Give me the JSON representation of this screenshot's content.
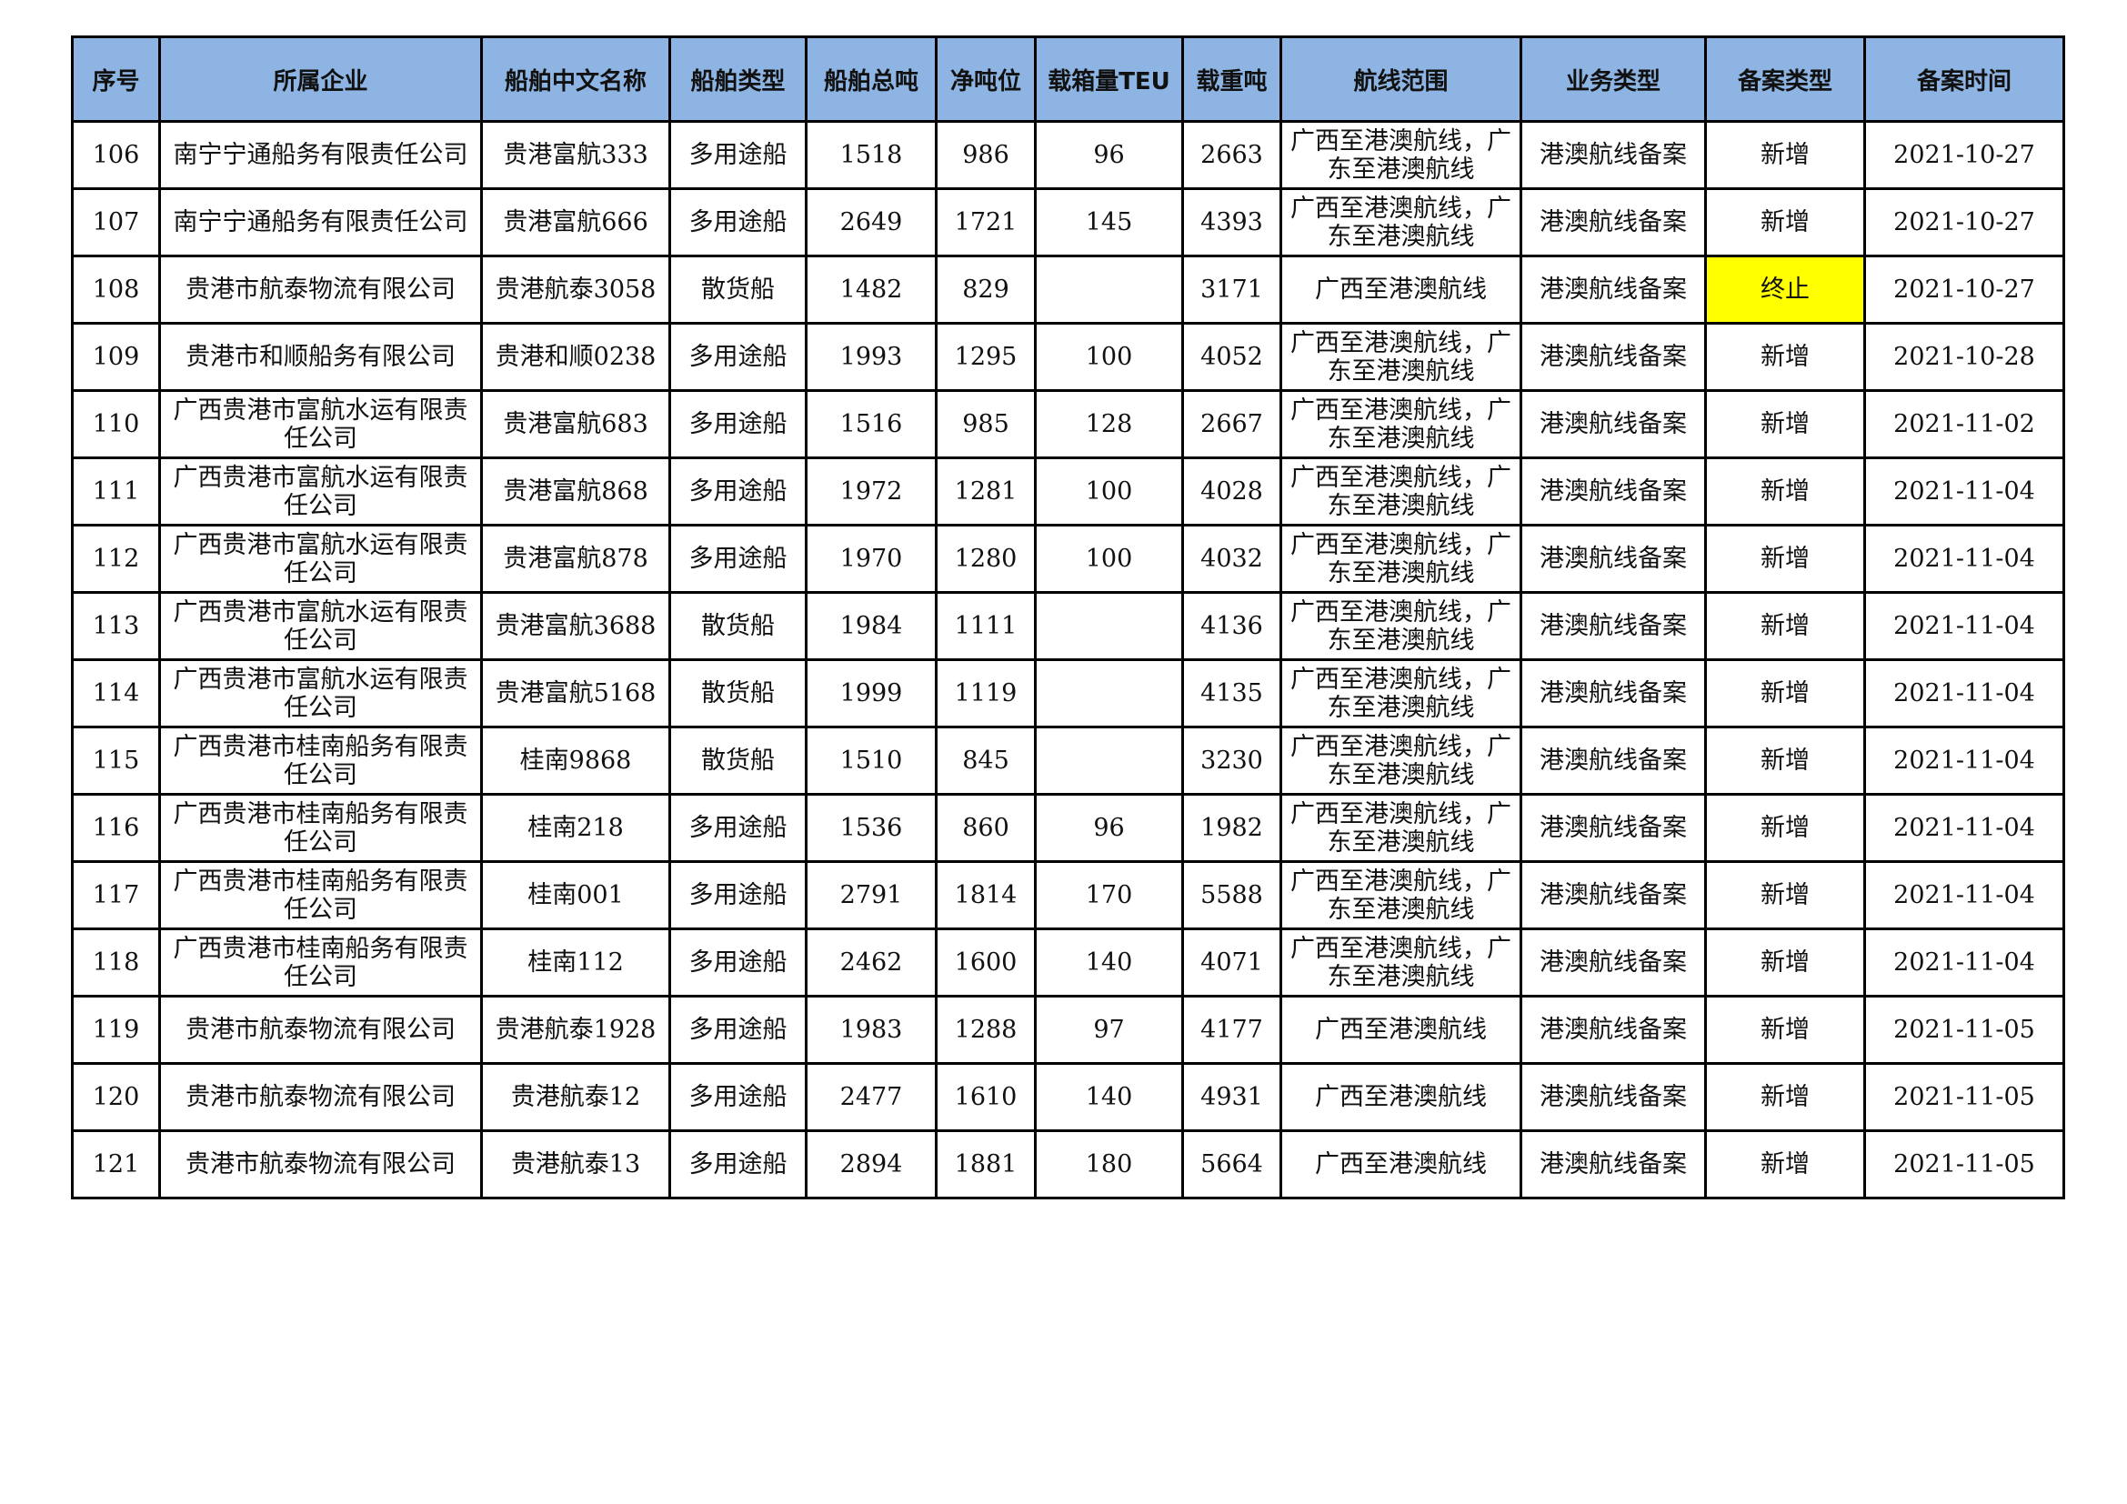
{
  "columns": [
    "序号",
    "所属企业",
    "船舶中文名称",
    "船舶类型",
    "船舶总吨",
    "净吨位",
    "载箱量TEU",
    "载重吨",
    "航线范围",
    "业务类型",
    "备案类型",
    "备案时间"
  ],
  "highlight_color": "#FFFF00",
  "header_color": "#8DB4E2",
  "rows": [
    [
      "106",
      "南宁宁通船务有限责任公司",
      "贵港富航333",
      "多用途船",
      "1518",
      "986",
      "96",
      "2663",
      "广西至港澳航线，广东至港澳航线",
      "港澳航线备案",
      "新增",
      "2021-10-27"
    ],
    [
      "107",
      "南宁宁通船务有限责任公司",
      "贵港富航666",
      "多用途船",
      "2649",
      "1721",
      "145",
      "4393",
      "广西至港澳航线，广东至港澳航线",
      "港澳航线备案",
      "新增",
      "2021-10-27"
    ],
    [
      "108",
      "贵港市航泰物流有限公司",
      "贵港航泰3058",
      "散货船",
      "1482",
      "829",
      "",
      "3171",
      "广西至港澳航线",
      "港澳航线备案",
      "终止",
      "2021-10-27"
    ],
    [
      "109",
      "贵港市和顺船务有限公司",
      "贵港和顺0238",
      "多用途船",
      "1993",
      "1295",
      "100",
      "4052",
      "广西至港澳航线，广东至港澳航线",
      "港澳航线备案",
      "新增",
      "2021-10-28"
    ],
    [
      "110",
      "广西贵港市富航水运有限责任公司",
      "贵港富航683",
      "多用途船",
      "1516",
      "985",
      "128",
      "2667",
      "广西至港澳航线，广东至港澳航线",
      "港澳航线备案",
      "新增",
      "2021-11-02"
    ],
    [
      "111",
      "广西贵港市富航水运有限责任公司",
      "贵港富航868",
      "多用途船",
      "1972",
      "1281",
      "100",
      "4028",
      "广西至港澳航线，广东至港澳航线",
      "港澳航线备案",
      "新增",
      "2021-11-04"
    ],
    [
      "112",
      "广西贵港市富航水运有限责任公司",
      "贵港富航878",
      "多用途船",
      "1970",
      "1280",
      "100",
      "4032",
      "广西至港澳航线，广东至港澳航线",
      "港澳航线备案",
      "新增",
      "2021-11-04"
    ],
    [
      "113",
      "广西贵港市富航水运有限责任公司",
      "贵港富航3688",
      "散货船",
      "1984",
      "1111",
      "",
      "4136",
      "广西至港澳航线，广东至港澳航线",
      "港澳航线备案",
      "新增",
      "2021-11-04"
    ],
    [
      "114",
      "广西贵港市富航水运有限责任公司",
      "贵港富航5168",
      "散货船",
      "1999",
      "1119",
      "",
      "4135",
      "广西至港澳航线，广东至港澳航线",
      "港澳航线备案",
      "新增",
      "2021-11-04"
    ],
    [
      "115",
      "广西贵港市桂南船务有限责任公司",
      "桂南9868",
      "散货船",
      "1510",
      "845",
      "",
      "3230",
      "广西至港澳航线，广东至港澳航线",
      "港澳航线备案",
      "新增",
      "2021-11-04"
    ],
    [
      "116",
      "广西贵港市桂南船务有限责任公司",
      "桂南218",
      "多用途船",
      "1536",
      "860",
      "96",
      "1982",
      "广西至港澳航线，广东至港澳航线",
      "港澳航线备案",
      "新增",
      "2021-11-04"
    ],
    [
      "117",
      "广西贵港市桂南船务有限责任公司",
      "桂南001",
      "多用途船",
      "2791",
      "1814",
      "170",
      "5588",
      "广西至港澳航线，广东至港澳航线",
      "港澳航线备案",
      "新增",
      "2021-11-04"
    ],
    [
      "118",
      "广西贵港市桂南船务有限责任公司",
      "桂南112",
      "多用途船",
      "2462",
      "1600",
      "140",
      "4071",
      "广西至港澳航线，广东至港澳航线",
      "港澳航线备案",
      "新增",
      "2021-11-04"
    ],
    [
      "119",
      "贵港市航泰物流有限公司",
      "贵港航泰1928",
      "多用途船",
      "1983",
      "1288",
      "97",
      "4177",
      "广西至港澳航线",
      "港澳航线备案",
      "新增",
      "2021-11-05"
    ],
    [
      "120",
      "贵港市航泰物流有限公司",
      "贵港航泰12",
      "多用途船",
      "2477",
      "1610",
      "140",
      "4931",
      "广西至港澳航线",
      "港澳航线备案",
      "新增",
      "2021-11-05"
    ],
    [
      "121",
      "贵港市航泰物流有限公司",
      "贵港航泰13",
      "多用途船",
      "2894",
      "1881",
      "180",
      "5664",
      "广西至港澳航线",
      "港澳航线备案",
      "新增",
      "2021-11-05"
    ]
  ]
}
